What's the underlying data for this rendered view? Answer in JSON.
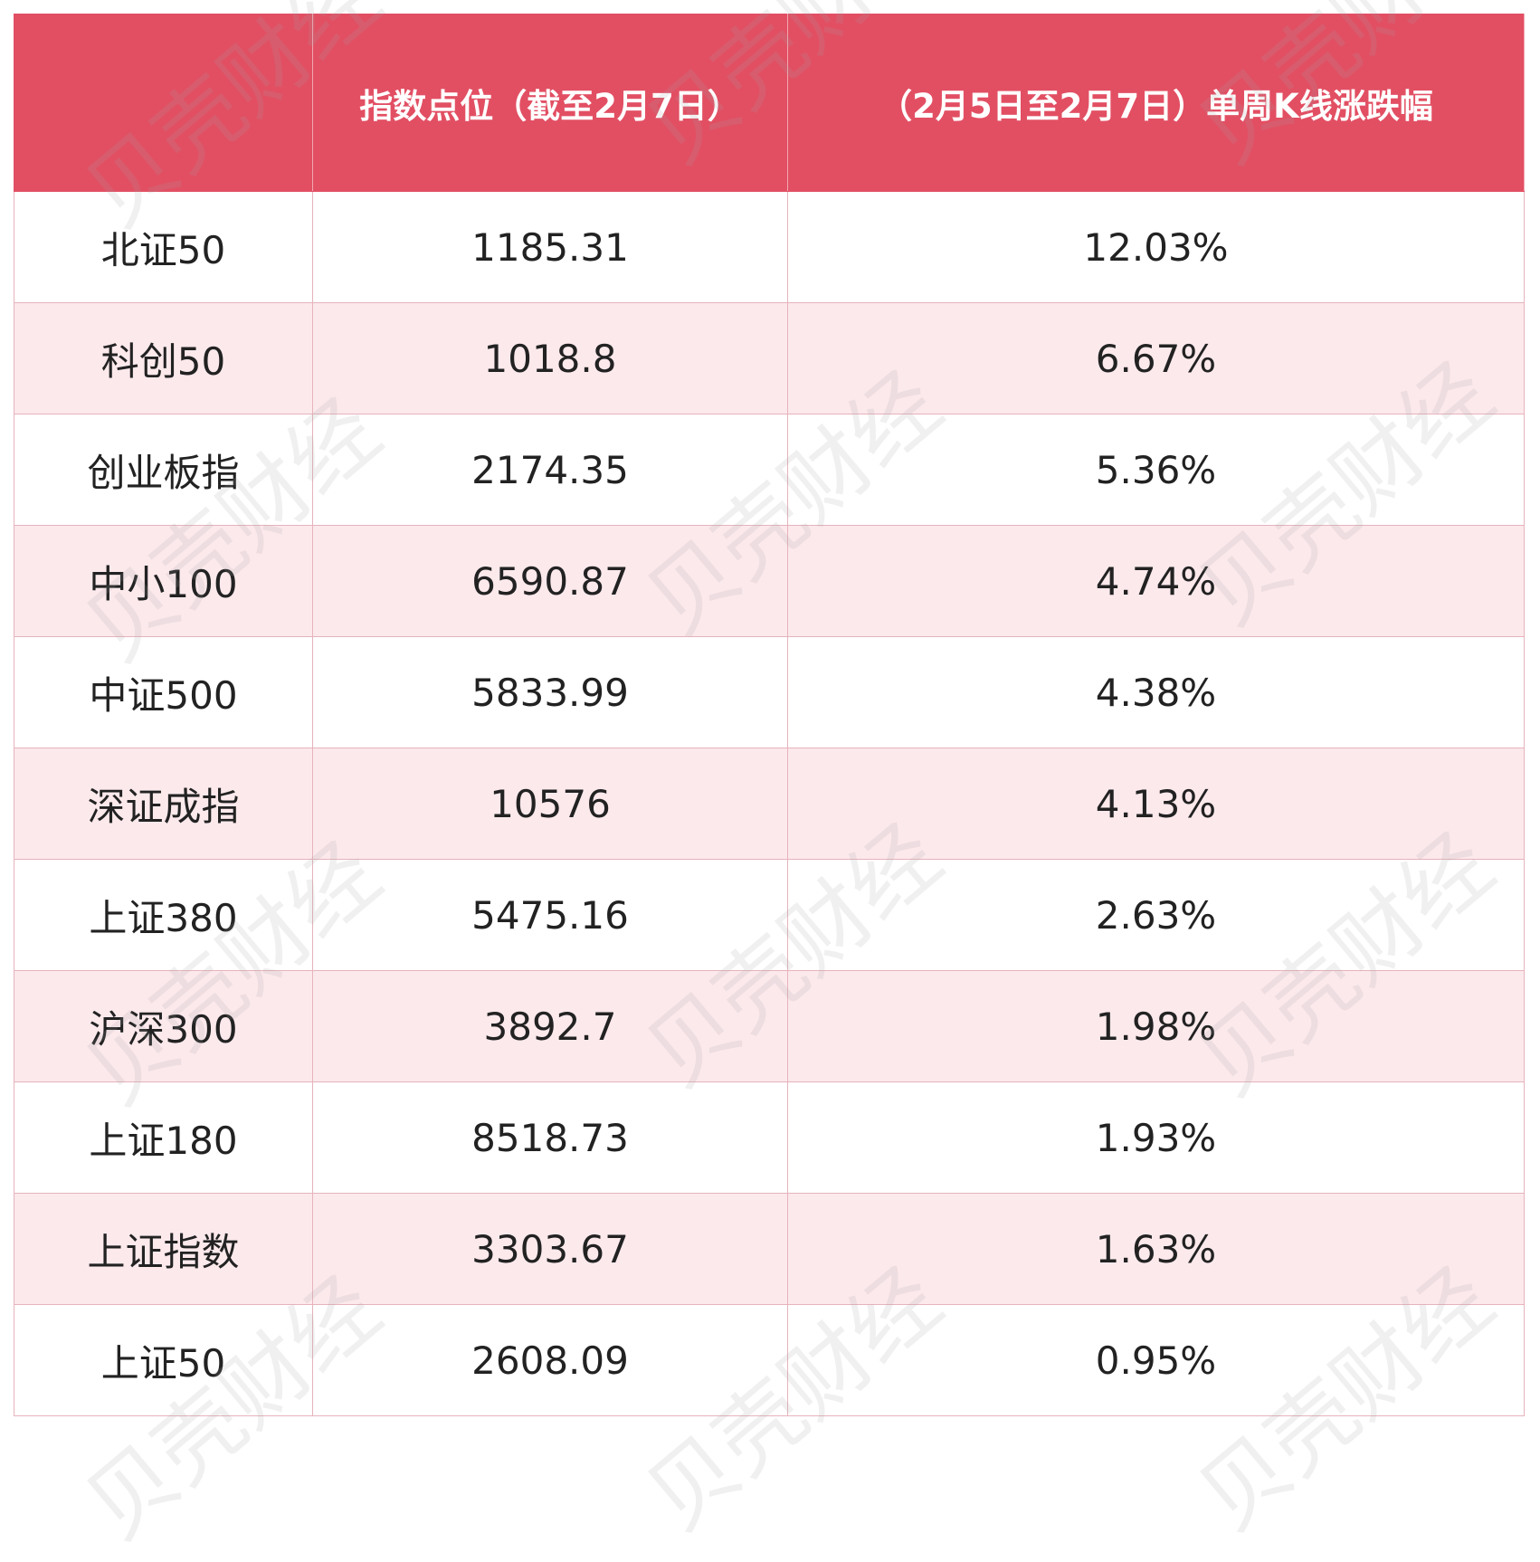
{
  "table": {
    "header": [
      "指数点位（截至2月7日）",
      "（2月5日至2月7日）单周K线涨跌幅"
    ],
    "rows": [
      [
        "北证50",
        "1185.31",
        "12.03%"
      ],
      [
        "科创50",
        "1018.8",
        "6.67%"
      ],
      [
        "创业板指",
        "2174.35",
        "5.36%"
      ],
      [
        "中小100",
        "6590.87",
        "4.74%"
      ],
      [
        "中证500",
        "5833.99",
        "4.38%"
      ],
      [
        "深证成指",
        "10576",
        "4.13%"
      ],
      [
        "上证380",
        "5475.16",
        "2.63%"
      ],
      [
        "沪深300",
        "3892.7",
        "1.98%"
      ],
      [
        "上证180",
        "8518.73",
        "1.93%"
      ],
      [
        "上证指数",
        "3303.67",
        "1.63%"
      ],
      [
        "上证50",
        "2608.09",
        "0.95%"
      ]
    ]
  },
  "watermark": "贝壳财经"
}
